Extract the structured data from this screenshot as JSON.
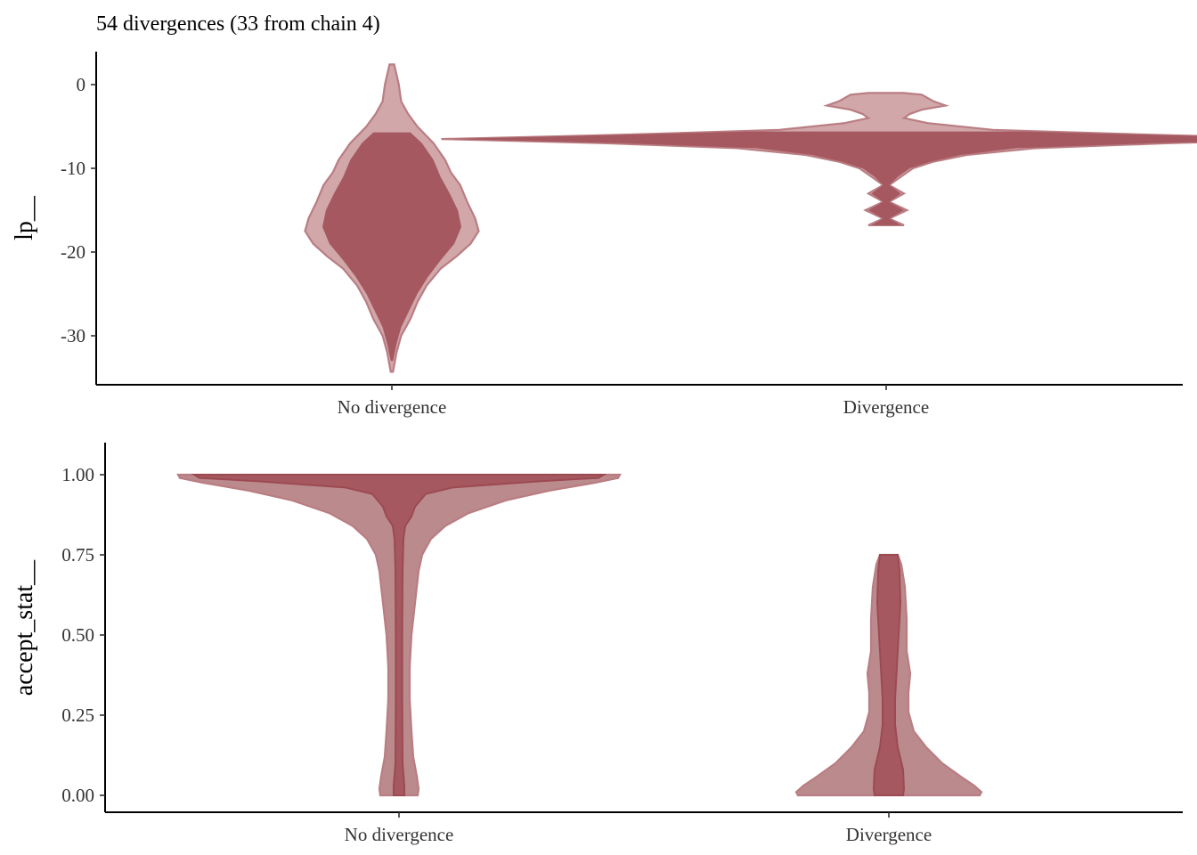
{
  "colors": {
    "outer_fill": "#d1a7aa",
    "outer_stroke": "#b97d82",
    "inner_fill": "#a5585f",
    "inner_stroke": "#a5585f",
    "outer_fill_alt": "#bb8a8d",
    "inner_fill_alt": "#a5585f"
  },
  "chart_data": [
    {
      "type": "violin",
      "title": "54 divergences (33 from chain 4)",
      "xlabel": "",
      "ylabel": "lp__",
      "categories": [
        "No divergence",
        "Divergence"
      ],
      "yticks": [
        0,
        -10,
        -20,
        -30
      ],
      "ytick_labels": [
        "0",
        "-10",
        "-20",
        "-30"
      ],
      "ylim": [
        -36,
        4
      ],
      "grid": false,
      "violins": [
        {
          "category": "No divergence",
          "outer_halfwidth": [
            [
              2.4,
              0.2
            ],
            [
              0,
              0.6
            ],
            [
              -2,
              0.8
            ],
            [
              -3.5,
              1.4
            ],
            [
              -5,
              2.2
            ],
            [
              -7,
              3.6
            ],
            [
              -9,
              4.6
            ],
            [
              -10.5,
              5.1
            ],
            [
              -12,
              5.9
            ],
            [
              -14,
              6.5
            ],
            [
              -16,
              7.2
            ],
            [
              -17.5,
              7.5
            ],
            [
              -19,
              6.8
            ],
            [
              -20.5,
              5.6
            ],
            [
              -22,
              4.2
            ],
            [
              -24,
              3.0
            ],
            [
              -26,
              2.2
            ],
            [
              -28,
              1.6
            ],
            [
              -30,
              0.8
            ],
            [
              -32,
              0.4
            ],
            [
              -34.3,
              0.1
            ]
          ],
          "inner_halfwidth": [
            [
              -5.7,
              1.6
            ],
            [
              -7,
              2.6
            ],
            [
              -9,
              3.6
            ],
            [
              -11,
              4.2
            ],
            [
              -13,
              5.0
            ],
            [
              -15,
              5.7
            ],
            [
              -17,
              6.0
            ],
            [
              -19,
              5.4
            ],
            [
              -21,
              4.2
            ],
            [
              -23,
              3.1
            ],
            [
              -25,
              2.2
            ],
            [
              -27,
              1.5
            ],
            [
              -29,
              0.8
            ],
            [
              -31,
              0.4
            ],
            [
              -33,
              0.1
            ]
          ]
        },
        {
          "category": "Divergence",
          "outer_halfwidth": [
            [
              -1,
              0.6
            ],
            [
              -1.2,
              1.2
            ],
            [
              -2,
              1.6
            ],
            [
              -2.5,
              2.0
            ],
            [
              -3,
              1.2
            ],
            [
              -3.5,
              0.8
            ],
            [
              -4,
              0.6
            ],
            [
              -4.6,
              1.4
            ],
            [
              -5.4,
              3.6
            ],
            [
              -6,
              9.0
            ],
            [
              -6.5,
              15.0
            ],
            [
              -7,
              9.5
            ],
            [
              -7.6,
              5.0
            ],
            [
              -8.4,
              2.7
            ],
            [
              -9.2,
              1.6
            ],
            [
              -10,
              0.9
            ],
            [
              -11,
              0.5
            ],
            [
              -12,
              0.1
            ],
            [
              -13,
              0.6
            ],
            [
              -14,
              0.1
            ],
            [
              -15,
              0.7
            ],
            [
              -16,
              0.1
            ],
            [
              -16.8,
              0.6
            ]
          ],
          "inner_halfwidth": [
            [
              -5.6,
              4.6
            ],
            [
              -6,
              9.0
            ],
            [
              -6.5,
              14.7
            ],
            [
              -7,
              9.0
            ],
            [
              -7.6,
              4.4
            ],
            [
              -8.4,
              2.5
            ],
            [
              -9.2,
              1.5
            ],
            [
              -10,
              0.8
            ],
            [
              -11,
              0.4
            ],
            [
              -12,
              0.1
            ],
            [
              -13,
              0.5
            ],
            [
              -14,
              0.1
            ],
            [
              -15,
              0.6
            ],
            [
              -16,
              0.1
            ],
            [
              -16.8,
              0.5
            ]
          ]
        }
      ]
    },
    {
      "type": "violin",
      "title": "",
      "xlabel": "",
      "ylabel": "accept_stat__",
      "categories": [
        "No divergence",
        "Divergence"
      ],
      "yticks": [
        1,
        0.75,
        0.5,
        0.25,
        0
      ],
      "ytick_labels": [
        "1.00",
        "0.75",
        "0.50",
        "0.25",
        "0.00"
      ],
      "ylim": [
        -0.05,
        1.1
      ],
      "grid": false,
      "violins": [
        {
          "category": "No divergence",
          "outer_halfwidth": [
            [
              1.0,
              12.4
            ],
            [
              0.99,
              12.3
            ],
            [
              0.975,
              11.0
            ],
            [
              0.95,
              8.4
            ],
            [
              0.92,
              6.0
            ],
            [
              0.88,
              3.9
            ],
            [
              0.84,
              2.6
            ],
            [
              0.8,
              1.8
            ],
            [
              0.75,
              1.3
            ],
            [
              0.7,
              1.1
            ],
            [
              0.6,
              0.9
            ],
            [
              0.5,
              0.7
            ],
            [
              0.4,
              0.6
            ],
            [
              0.3,
              0.6
            ],
            [
              0.2,
              0.7
            ],
            [
              0.12,
              0.8
            ],
            [
              0.06,
              1.0
            ],
            [
              0.02,
              1.1
            ],
            [
              0.0,
              1.05
            ]
          ],
          "inner_halfwidth": [
            [
              1.0,
              11.5
            ],
            [
              0.99,
              11.2
            ],
            [
              0.98,
              8.0
            ],
            [
              0.96,
              3.0
            ],
            [
              0.94,
              1.5
            ],
            [
              0.9,
              0.9
            ],
            [
              0.87,
              0.7
            ],
            [
              0.84,
              0.35
            ],
            [
              0.8,
              0.25
            ],
            [
              0.7,
              0.2
            ],
            [
              0.5,
              0.18
            ],
            [
              0.3,
              0.18
            ],
            [
              0.1,
              0.2
            ],
            [
              0.03,
              0.3
            ],
            [
              0.0,
              0.3
            ]
          ]
        },
        {
          "category": "Divergence",
          "outer_halfwidth": [
            [
              0.75,
              0.5
            ],
            [
              0.72,
              0.7
            ],
            [
              0.65,
              0.9
            ],
            [
              0.55,
              1.0
            ],
            [
              0.45,
              1.0
            ],
            [
              0.38,
              1.2
            ],
            [
              0.32,
              1.1
            ],
            [
              0.26,
              1.1
            ],
            [
              0.2,
              1.4
            ],
            [
              0.15,
              2.1
            ],
            [
              0.1,
              3.0
            ],
            [
              0.06,
              4.0
            ],
            [
              0.03,
              4.8
            ],
            [
              0.01,
              5.2
            ],
            [
              0.0,
              5.1
            ]
          ],
          "inner_halfwidth": [
            [
              0.75,
              0.5
            ],
            [
              0.7,
              0.6
            ],
            [
              0.6,
              0.65
            ],
            [
              0.5,
              0.55
            ],
            [
              0.4,
              0.45
            ],
            [
              0.3,
              0.35
            ],
            [
              0.22,
              0.35
            ],
            [
              0.15,
              0.5
            ],
            [
              0.08,
              0.8
            ],
            [
              0.02,
              0.85
            ],
            [
              0.0,
              0.8
            ]
          ]
        }
      ]
    }
  ]
}
